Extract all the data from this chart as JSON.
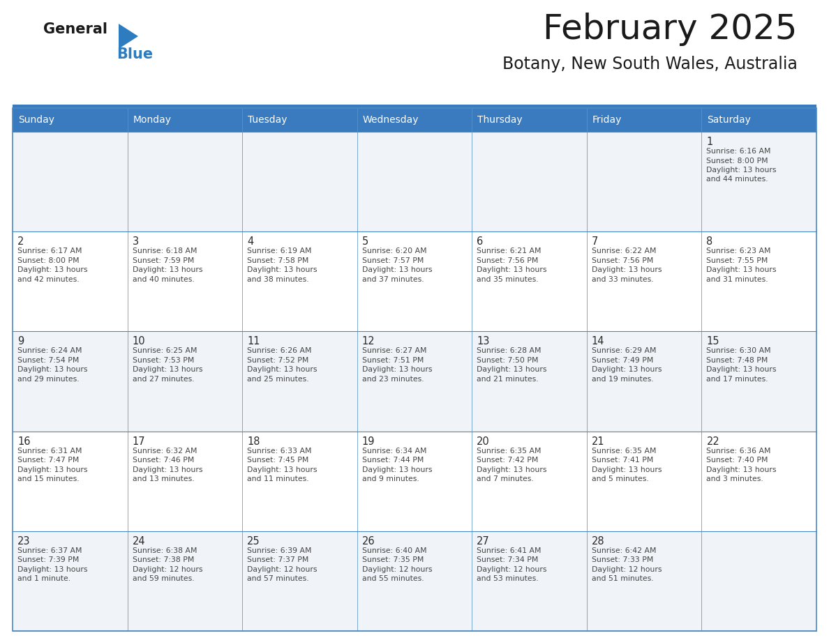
{
  "title": "February 2025",
  "subtitle": "Botany, New South Wales, Australia",
  "days_of_week": [
    "Sunday",
    "Monday",
    "Tuesday",
    "Wednesday",
    "Thursday",
    "Friday",
    "Saturday"
  ],
  "header_bg": "#3a7abf",
  "header_text": "#ffffff",
  "row_bg_light": "#f0f4f8",
  "row_bg_white": "#ffffff",
  "border_color": "#4a8ac4",
  "text_color": "#444444",
  "day_num_color": "#2a2a2a",
  "logo_text_color": "#1a1a1a",
  "logo_blue_color": "#2d7cbf",
  "title_color": "#1a1a1a",
  "calendar_data": [
    [
      null,
      null,
      null,
      null,
      null,
      null,
      {
        "day": 1,
        "sunrise": "6:16 AM",
        "sunset": "8:00 PM",
        "daylight_line1": "Daylight: 13 hours",
        "daylight_line2": "and 44 minutes."
      }
    ],
    [
      {
        "day": 2,
        "sunrise": "6:17 AM",
        "sunset": "8:00 PM",
        "daylight_line1": "Daylight: 13 hours",
        "daylight_line2": "and 42 minutes."
      },
      {
        "day": 3,
        "sunrise": "6:18 AM",
        "sunset": "7:59 PM",
        "daylight_line1": "Daylight: 13 hours",
        "daylight_line2": "and 40 minutes."
      },
      {
        "day": 4,
        "sunrise": "6:19 AM",
        "sunset": "7:58 PM",
        "daylight_line1": "Daylight: 13 hours",
        "daylight_line2": "and 38 minutes."
      },
      {
        "day": 5,
        "sunrise": "6:20 AM",
        "sunset": "7:57 PM",
        "daylight_line1": "Daylight: 13 hours",
        "daylight_line2": "and 37 minutes."
      },
      {
        "day": 6,
        "sunrise": "6:21 AM",
        "sunset": "7:56 PM",
        "daylight_line1": "Daylight: 13 hours",
        "daylight_line2": "and 35 minutes."
      },
      {
        "day": 7,
        "sunrise": "6:22 AM",
        "sunset": "7:56 PM",
        "daylight_line1": "Daylight: 13 hours",
        "daylight_line2": "and 33 minutes."
      },
      {
        "day": 8,
        "sunrise": "6:23 AM",
        "sunset": "7:55 PM",
        "daylight_line1": "Daylight: 13 hours",
        "daylight_line2": "and 31 minutes."
      }
    ],
    [
      {
        "day": 9,
        "sunrise": "6:24 AM",
        "sunset": "7:54 PM",
        "daylight_line1": "Daylight: 13 hours",
        "daylight_line2": "and 29 minutes."
      },
      {
        "day": 10,
        "sunrise": "6:25 AM",
        "sunset": "7:53 PM",
        "daylight_line1": "Daylight: 13 hours",
        "daylight_line2": "and 27 minutes."
      },
      {
        "day": 11,
        "sunrise": "6:26 AM",
        "sunset": "7:52 PM",
        "daylight_line1": "Daylight: 13 hours",
        "daylight_line2": "and 25 minutes."
      },
      {
        "day": 12,
        "sunrise": "6:27 AM",
        "sunset": "7:51 PM",
        "daylight_line1": "Daylight: 13 hours",
        "daylight_line2": "and 23 minutes."
      },
      {
        "day": 13,
        "sunrise": "6:28 AM",
        "sunset": "7:50 PM",
        "daylight_line1": "Daylight: 13 hours",
        "daylight_line2": "and 21 minutes."
      },
      {
        "day": 14,
        "sunrise": "6:29 AM",
        "sunset": "7:49 PM",
        "daylight_line1": "Daylight: 13 hours",
        "daylight_line2": "and 19 minutes."
      },
      {
        "day": 15,
        "sunrise": "6:30 AM",
        "sunset": "7:48 PM",
        "daylight_line1": "Daylight: 13 hours",
        "daylight_line2": "and 17 minutes."
      }
    ],
    [
      {
        "day": 16,
        "sunrise": "6:31 AM",
        "sunset": "7:47 PM",
        "daylight_line1": "Daylight: 13 hours",
        "daylight_line2": "and 15 minutes."
      },
      {
        "day": 17,
        "sunrise": "6:32 AM",
        "sunset": "7:46 PM",
        "daylight_line1": "Daylight: 13 hours",
        "daylight_line2": "and 13 minutes."
      },
      {
        "day": 18,
        "sunrise": "6:33 AM",
        "sunset": "7:45 PM",
        "daylight_line1": "Daylight: 13 hours",
        "daylight_line2": "and 11 minutes."
      },
      {
        "day": 19,
        "sunrise": "6:34 AM",
        "sunset": "7:44 PM",
        "daylight_line1": "Daylight: 13 hours",
        "daylight_line2": "and 9 minutes."
      },
      {
        "day": 20,
        "sunrise": "6:35 AM",
        "sunset": "7:42 PM",
        "daylight_line1": "Daylight: 13 hours",
        "daylight_line2": "and 7 minutes."
      },
      {
        "day": 21,
        "sunrise": "6:35 AM",
        "sunset": "7:41 PM",
        "daylight_line1": "Daylight: 13 hours",
        "daylight_line2": "and 5 minutes."
      },
      {
        "day": 22,
        "sunrise": "6:36 AM",
        "sunset": "7:40 PM",
        "daylight_line1": "Daylight: 13 hours",
        "daylight_line2": "and 3 minutes."
      }
    ],
    [
      {
        "day": 23,
        "sunrise": "6:37 AM",
        "sunset": "7:39 PM",
        "daylight_line1": "Daylight: 13 hours",
        "daylight_line2": "and 1 minute."
      },
      {
        "day": 24,
        "sunrise": "6:38 AM",
        "sunset": "7:38 PM",
        "daylight_line1": "Daylight: 12 hours",
        "daylight_line2": "and 59 minutes."
      },
      {
        "day": 25,
        "sunrise": "6:39 AM",
        "sunset": "7:37 PM",
        "daylight_line1": "Daylight: 12 hours",
        "daylight_line2": "and 57 minutes."
      },
      {
        "day": 26,
        "sunrise": "6:40 AM",
        "sunset": "7:35 PM",
        "daylight_line1": "Daylight: 12 hours",
        "daylight_line2": "and 55 minutes."
      },
      {
        "day": 27,
        "sunrise": "6:41 AM",
        "sunset": "7:34 PM",
        "daylight_line1": "Daylight: 12 hours",
        "daylight_line2": "and 53 minutes."
      },
      {
        "day": 28,
        "sunrise": "6:42 AM",
        "sunset": "7:33 PM",
        "daylight_line1": "Daylight: 12 hours",
        "daylight_line2": "and 51 minutes."
      },
      null
    ]
  ]
}
